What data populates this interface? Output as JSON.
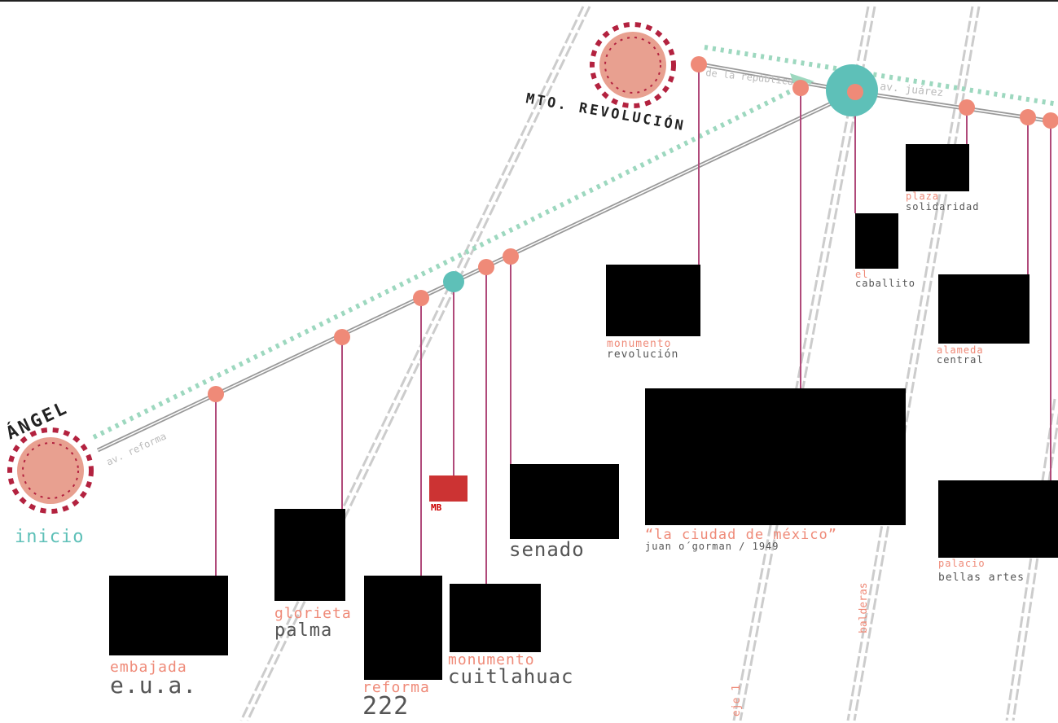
{
  "start": {
    "title": "ÁNGEL",
    "label": "inicio"
  },
  "end": {
    "title": "MTO. REVOLUCIÓN"
  },
  "streets": {
    "reforma": "av. reforma",
    "republica": "de la república",
    "juarez": "av. juárez",
    "eje": "eje 1",
    "balderas": "balderas"
  },
  "metro_icon": "MB",
  "stops": [
    {
      "line1": "embajada",
      "line2": "e.u.a."
    },
    {
      "line1": "glorieta",
      "line2": "palma"
    },
    {
      "line1": "reforma",
      "line2": "222"
    },
    {
      "line1": "monumento",
      "line2": "cuitlahuac"
    },
    {
      "line2": "senado"
    },
    {
      "line1": "monumento",
      "line2": "revolución"
    },
    {
      "line1": "“la ciudad de méxico”",
      "line2": "juan o´gorman / 1949"
    },
    {
      "line1": "el",
      "line2": "caballito"
    },
    {
      "line1": "plaza",
      "line2": "solidaridad"
    },
    {
      "line1": "alameda",
      "line2": "central"
    },
    {
      "line1": "palacio",
      "line2": "bellas artes"
    }
  ]
}
